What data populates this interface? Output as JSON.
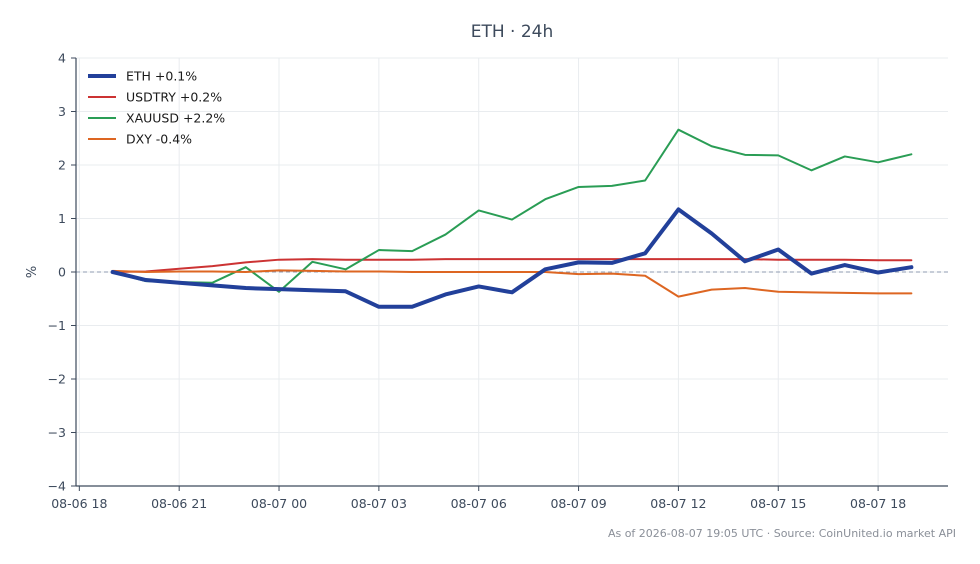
{
  "chart_data": {
    "type": "line",
    "title": "ETH · 24h",
    "ylabel": "%",
    "xlabel": "",
    "ylim": [
      -4,
      4
    ],
    "yticks": [
      -4,
      -3,
      -2,
      -1,
      0,
      1,
      2,
      3,
      4
    ],
    "ytick_labels": [
      "−4",
      "−3",
      "−2",
      "−1",
      "0",
      "1",
      "2",
      "3",
      "4"
    ],
    "xlim": [
      -0.1,
      26.1
    ],
    "xticks": [
      0,
      3,
      6,
      9,
      12,
      15,
      18,
      21,
      24
    ],
    "xtick_labels": [
      "08-06 18",
      "08-06 21",
      "08-07 00",
      "08-07 03",
      "08-07 06",
      "08-07 09",
      "08-07 12",
      "08-07 15",
      "08-07 18"
    ],
    "x": [
      1,
      2,
      3,
      4,
      5,
      6,
      7,
      8,
      9,
      10,
      11,
      12,
      13,
      14,
      15,
      16,
      17,
      18,
      19,
      20,
      21,
      22,
      23,
      24,
      25
    ],
    "reference_line": 0,
    "grid": true,
    "legend_position": "top-left",
    "series": [
      {
        "name": "ETH +0.1%",
        "color": "#22409a",
        "width": 4,
        "values": [
          0.0,
          -0.15,
          -0.2,
          -0.25,
          -0.3,
          -0.32,
          -0.34,
          -0.36,
          -0.65,
          -0.65,
          -0.42,
          -0.27,
          -0.38,
          0.05,
          0.18,
          0.17,
          0.35,
          1.17,
          0.72,
          0.2,
          0.42,
          -0.03,
          0.13,
          -0.01,
          0.09
        ]
      },
      {
        "name": "USDTRY +0.2%",
        "color": "#cc3333",
        "width": 2,
        "values": [
          0.0,
          0.01,
          0.06,
          0.11,
          0.18,
          0.23,
          0.24,
          0.23,
          0.23,
          0.23,
          0.24,
          0.24,
          0.24,
          0.24,
          0.24,
          0.24,
          0.24,
          0.24,
          0.24,
          0.24,
          0.23,
          0.23,
          0.23,
          0.22,
          0.22
        ]
      },
      {
        "name": "XAUUSD +2.2%",
        "color": "#2a9d55",
        "width": 2,
        "values": [
          0.0,
          -0.17,
          -0.19,
          -0.2,
          0.09,
          -0.37,
          0.19,
          0.05,
          0.41,
          0.39,
          0.7,
          1.15,
          0.98,
          1.36,
          1.59,
          1.61,
          1.71,
          2.66,
          2.35,
          2.19,
          2.18,
          1.9,
          2.16,
          2.05,
          2.2
        ]
      },
      {
        "name": "DXY -0.4%",
        "color": "#dd6622",
        "width": 2,
        "values": [
          0.02,
          0.0,
          0.01,
          0.01,
          0.0,
          0.03,
          0.02,
          0.01,
          0.01,
          0.0,
          0.0,
          0.0,
          0.0,
          0.0,
          -0.04,
          -0.03,
          -0.07,
          -0.46,
          -0.33,
          -0.3,
          -0.37,
          -0.38,
          -0.39,
          -0.4,
          -0.4
        ]
      }
    ],
    "footer": "As of 2026-08-07 19:05 UTC · Source: CoinUnited.io market API"
  }
}
